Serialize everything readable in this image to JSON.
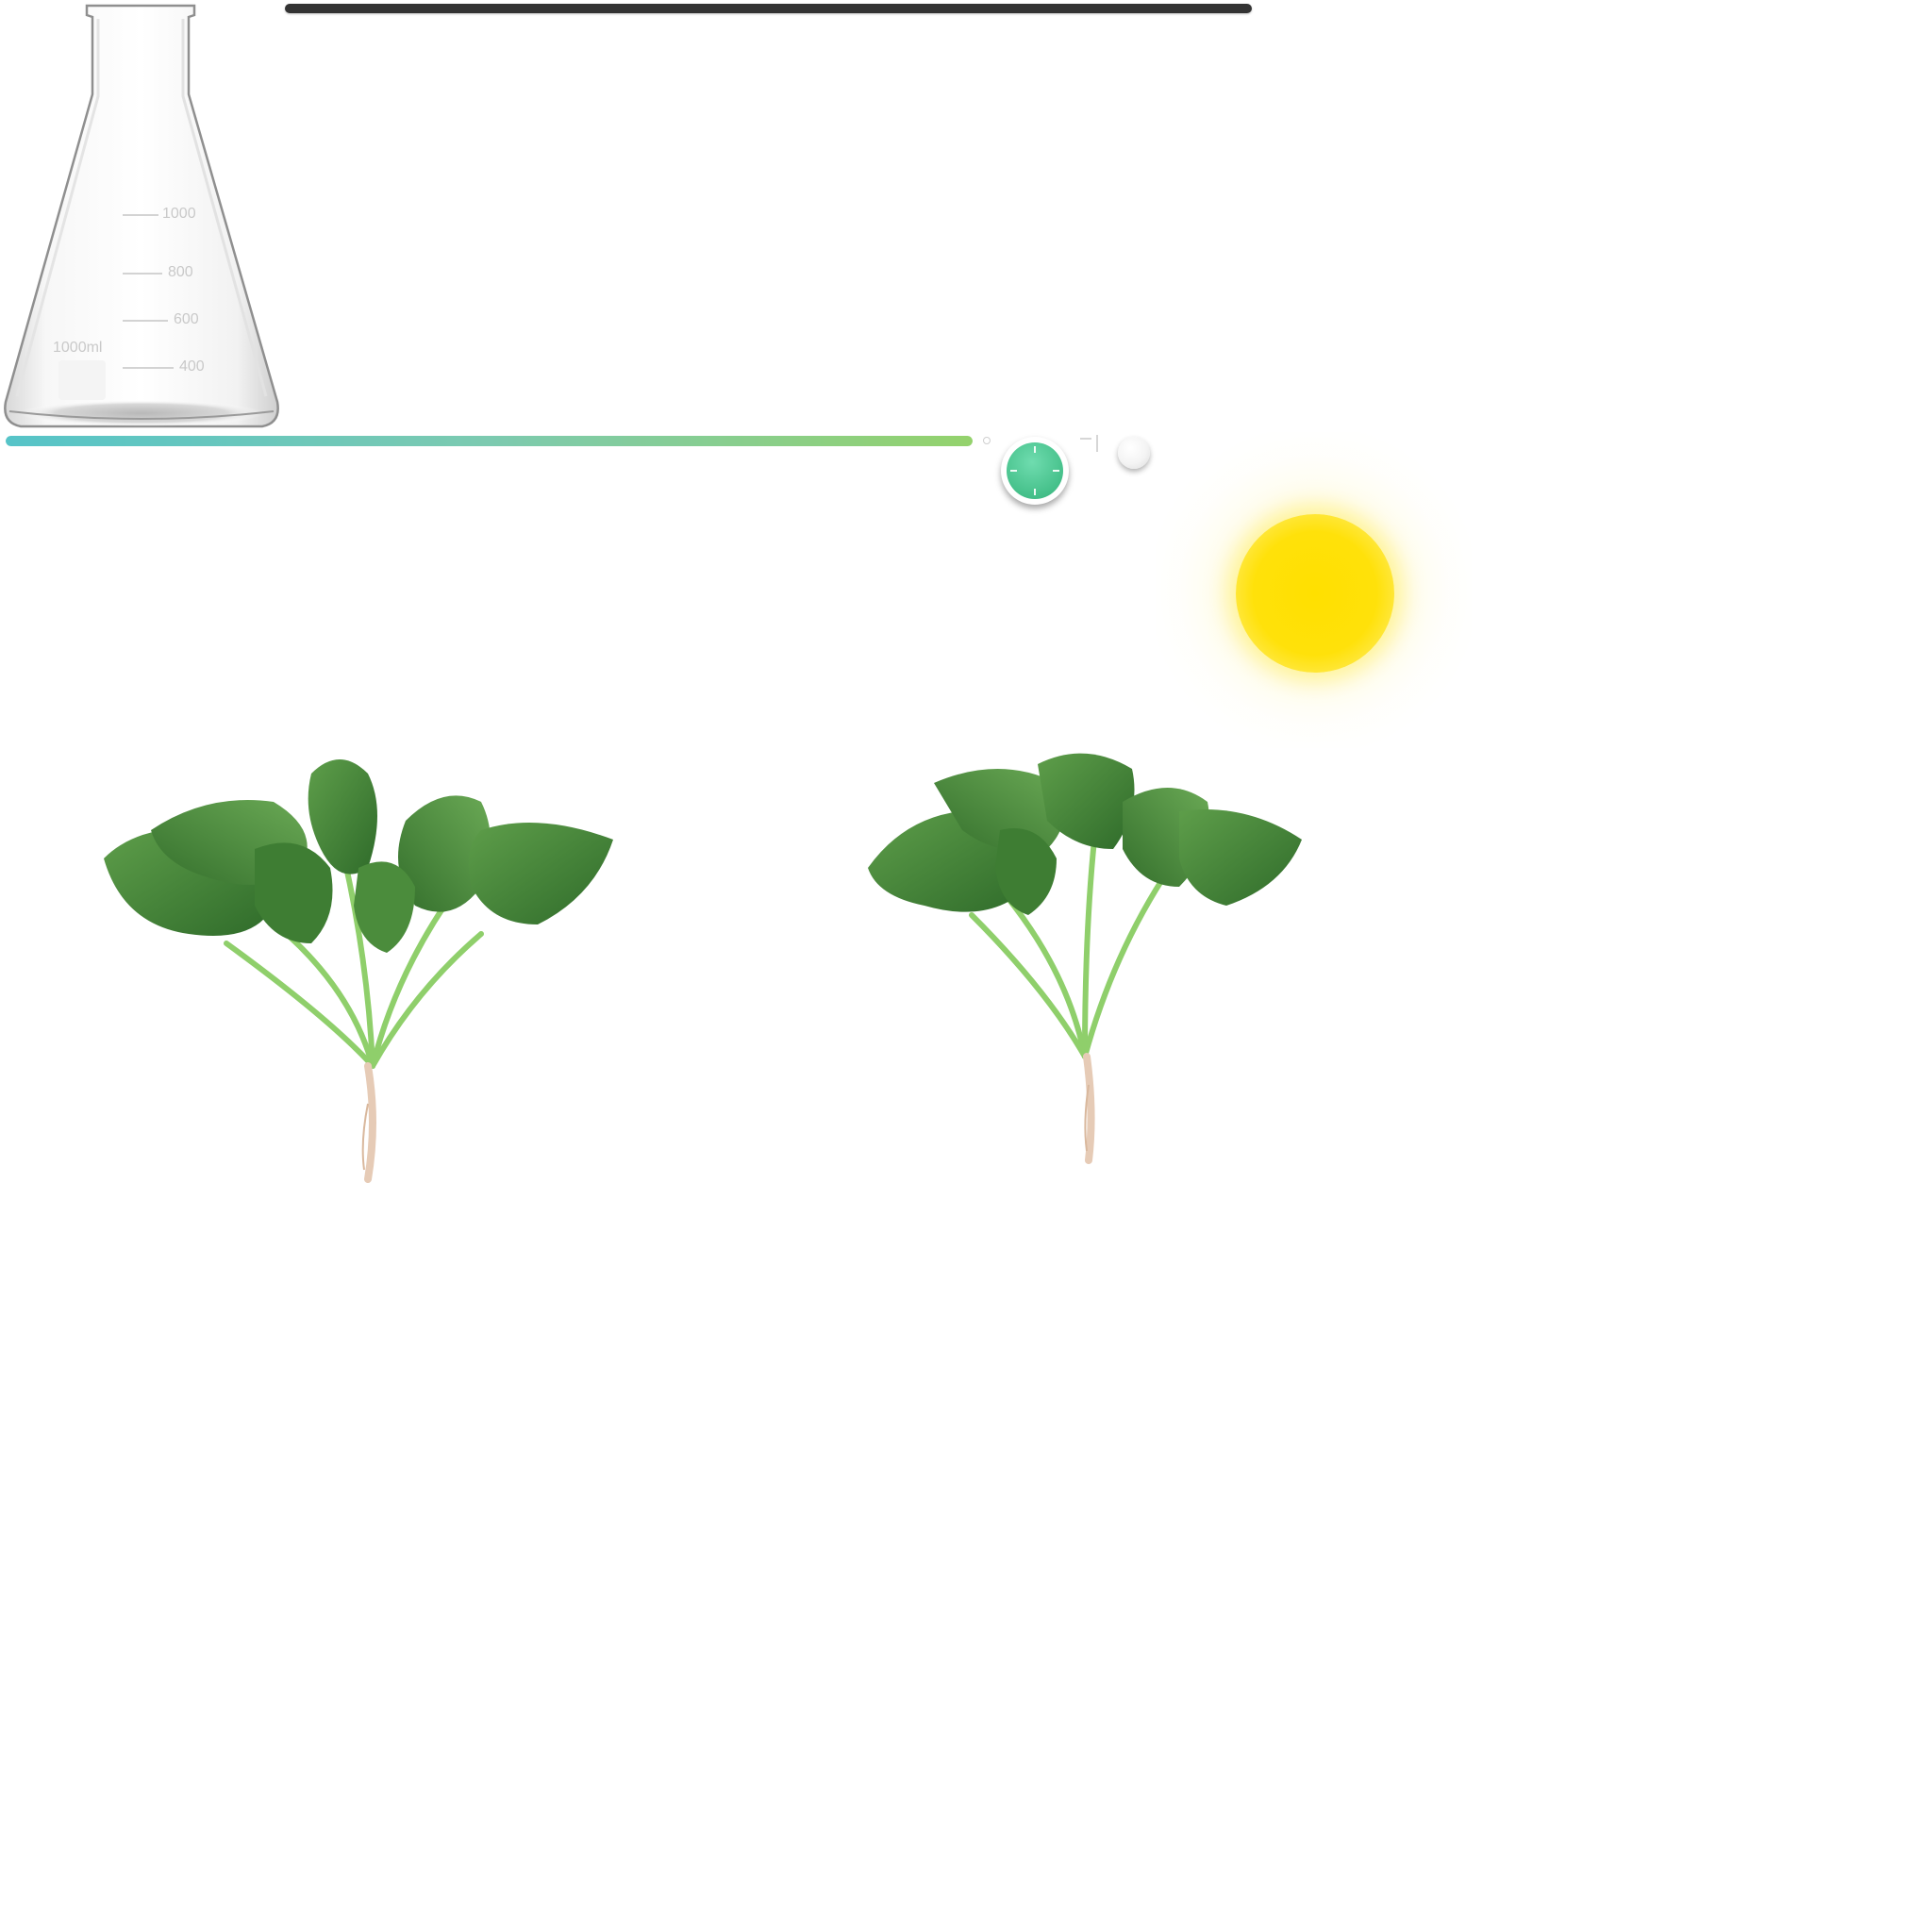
{
  "flask": {
    "volume_label": "1000ml",
    "scale_marks": [
      "1000",
      "800",
      "600",
      "400"
    ]
  },
  "progress": {
    "fraction": 1.0,
    "colors": [
      "#56c4c8",
      "#94d26c"
    ]
  },
  "timer": {
    "icon": "clock-icon",
    "color": "#45c08a"
  },
  "toggle": {
    "icon": "toggle-knob-icon"
  },
  "sun": {
    "icon": "sun-icon",
    "color": "#ffe000"
  },
  "plants": [
    {
      "icon": "spinach-plant-icon"
    },
    {
      "icon": "spinach-plant-icon"
    }
  ]
}
